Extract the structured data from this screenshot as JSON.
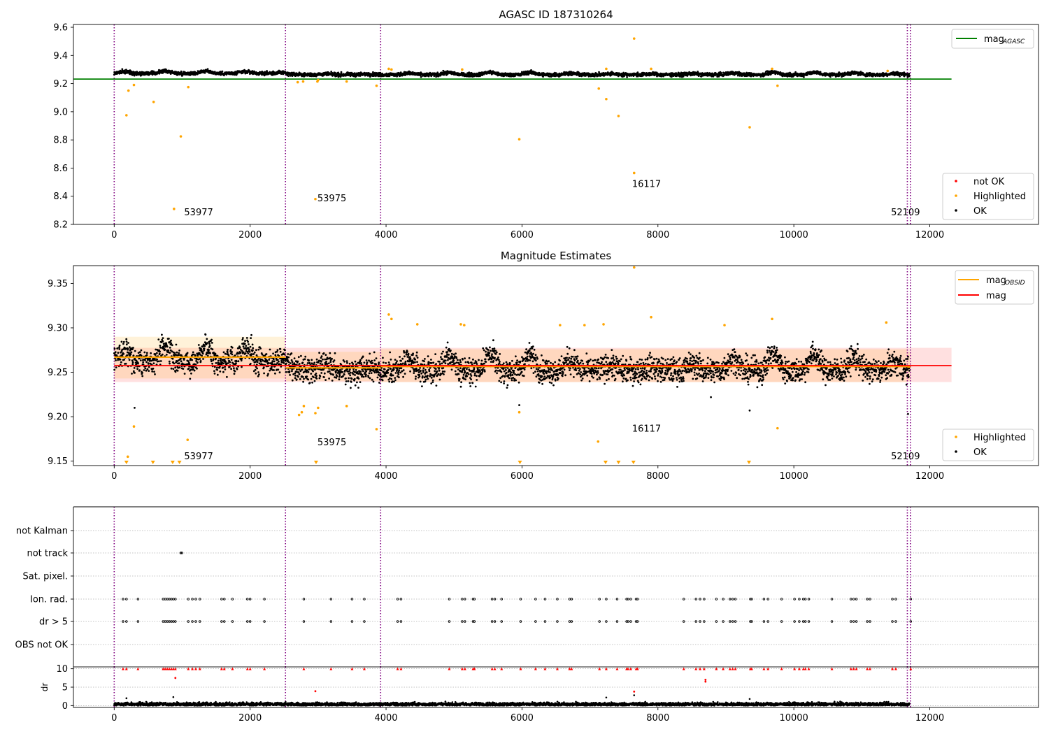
{
  "chart_data": [
    {
      "type": "scatter",
      "title": "AGASC ID 187310264",
      "xlim": [
        -600,
        13600
      ],
      "ylim": [
        8.2,
        9.62
      ],
      "xticks": [
        0,
        2000,
        4000,
        6000,
        8000,
        10000,
        12000
      ],
      "yticks": [
        8.2,
        8.4,
        8.6,
        8.8,
        9.0,
        9.2,
        9.4,
        9.6
      ],
      "ytick_labels": [
        "8.2",
        "8.4",
        "8.6",
        "8.8",
        "9.0",
        "9.2",
        "9.4",
        "9.6"
      ],
      "reference_line": {
        "name": "mag_AGASC",
        "value": 9.232,
        "x_range": [
          -600,
          12320
        ],
        "color": "#008000"
      },
      "obs_boundaries": [
        0,
        2520,
        3920,
        11670,
        11715
      ],
      "obs_labels": [
        {
          "text": "53977",
          "x": 1030,
          "y": 8.265
        },
        {
          "text": "53975",
          "x": 2990,
          "y": 8.365
        },
        {
          "text": "16117",
          "x": 7620,
          "y": 8.465
        },
        {
          "text": "52109",
          "x": 11430,
          "y": 8.265
        }
      ],
      "highlighted_points": [
        [
          180,
          8.975
        ],
        [
          210,
          9.15
        ],
        [
          290,
          9.19
        ],
        [
          580,
          9.07
        ],
        [
          880,
          8.31
        ],
        [
          980,
          8.825
        ],
        [
          1090,
          9.175
        ],
        [
          2700,
          9.21
        ],
        [
          2780,
          9.215
        ],
        [
          2960,
          8.38
        ],
        [
          2990,
          9.215
        ],
        [
          3000,
          9.225
        ],
        [
          3420,
          9.215
        ],
        [
          3860,
          9.185
        ],
        [
          4040,
          9.305
        ],
        [
          4080,
          9.3
        ],
        [
          5120,
          9.3
        ],
        [
          5960,
          8.805
        ],
        [
          7130,
          9.165
        ],
        [
          7240,
          9.09
        ],
        [
          7240,
          9.305
        ],
        [
          7420,
          8.97
        ],
        [
          7650,
          9.52
        ],
        [
          7650,
          8.565
        ],
        [
          7900,
          9.305
        ],
        [
          9350,
          8.89
        ],
        [
          9680,
          9.305
        ],
        [
          9760,
          9.185
        ],
        [
          11380,
          9.29
        ]
      ],
      "not_ok_points": [],
      "legends": [
        {
          "position": "upper-right",
          "entries": [
            {
              "label": "mag",
              "sub": "AGASC",
              "color": "#008000",
              "marker": "line"
            }
          ]
        },
        {
          "position": "lower-right",
          "entries": [
            {
              "label": "not OK",
              "color": "#ff0000",
              "marker": "dot"
            },
            {
              "label": "Highlighted",
              "color": "#ffa500",
              "marker": "dot"
            },
            {
              "label": "OK",
              "color": "#000000",
              "marker": "dot"
            }
          ]
        }
      ]
    },
    {
      "type": "scatter",
      "title": "Magnitude Estimates",
      "xlim": [
        -600,
        13600
      ],
      "ylim": [
        9.145,
        9.37
      ],
      "xticks": [
        0,
        2000,
        4000,
        6000,
        8000,
        10000,
        12000
      ],
      "yticks": [
        9.15,
        9.2,
        9.25,
        9.3,
        9.35
      ],
      "ytick_labels": [
        "9.15",
        "9.20",
        "9.25",
        "9.30",
        "9.35"
      ],
      "obs_boundaries": [
        0,
        2520,
        3920,
        11670,
        11715
      ],
      "obs_labels": [
        {
          "text": "53977",
          "x": 1030,
          "y": 9.152
        },
        {
          "text": "53975",
          "x": 2990,
          "y": 9.168
        },
        {
          "text": "16117",
          "x": 7620,
          "y": 9.183
        },
        {
          "text": "52109",
          "x": 11430,
          "y": 9.152
        }
      ],
      "mag_line": {
        "name": "mag",
        "value": 9.2575,
        "band": [
          9.239,
          9.2775
        ],
        "x_range": [
          0,
          12320
        ],
        "color": "#ff0000"
      },
      "mag_obsid_segments": [
        {
          "x_range": [
            0,
            2520
          ],
          "value": 9.267,
          "band": [
            9.243,
            9.29
          ]
        },
        {
          "x_range": [
            2520,
            3920
          ],
          "value": 9.255,
          "band": [
            9.24,
            9.273
          ]
        },
        {
          "x_range": [
            3920,
            11670
          ],
          "value": 9.2565,
          "band": [
            9.239,
            9.276
          ]
        },
        {
          "x_range": [
            11670,
            11715
          ],
          "value": 9.256,
          "band": [
            9.24,
            9.273
          ]
        }
      ],
      "highlighted_points": [
        [
          200,
          9.155
        ],
        [
          290,
          9.189
        ],
        [
          1080,
          9.174
        ],
        [
          2720,
          9.202
        ],
        [
          2760,
          9.205
        ],
        [
          2790,
          9.212
        ],
        [
          2960,
          9.204
        ],
        [
          3000,
          9.21
        ],
        [
          3420,
          9.212
        ],
        [
          3860,
          9.186
        ],
        [
          4040,
          9.315
        ],
        [
          4080,
          9.31
        ],
        [
          4460,
          9.304
        ],
        [
          5100,
          9.304
        ],
        [
          5150,
          9.303
        ],
        [
          5960,
          9.205
        ],
        [
          6560,
          9.303
        ],
        [
          6920,
          9.303
        ],
        [
          7120,
          9.172
        ],
        [
          7200,
          9.304
        ],
        [
          7650,
          9.368
        ],
        [
          7900,
          9.312
        ],
        [
          8980,
          9.303
        ],
        [
          9680,
          9.31
        ],
        [
          9760,
          9.187
        ],
        [
          11360,
          9.306
        ]
      ],
      "below_range_markers": [
        180,
        570,
        860,
        960,
        2970,
        5970,
        7230,
        7420,
        7640,
        9340
      ],
      "legends": [
        {
          "position": "upper-right",
          "entries": [
            {
              "label": "mag",
              "sub": "OBSID",
              "color": "#ffa500",
              "marker": "line"
            },
            {
              "label": "mag",
              "sub": "",
              "color": "#ff0000",
              "marker": "line"
            }
          ]
        },
        {
          "position": "lower-right",
          "entries": [
            {
              "label": "Highlighted",
              "color": "#ffa500",
              "marker": "dot"
            },
            {
              "label": "OK",
              "color": "#000000",
              "marker": "dot"
            }
          ]
        }
      ]
    },
    {
      "type": "scatter",
      "title": "",
      "xlim": [
        -600,
        13600
      ],
      "categories": [
        "not Kalman",
        "not track",
        "Sat. pixel.",
        "Ion. rad.",
        "dr > 5",
        "OBS not OK"
      ],
      "flag_positions": {
        "not Kalman": [],
        "not track": [
          980,
          995
        ],
        "Sat. pixel.": [],
        "Ion. rad.": [
          130,
          180,
          350,
          720,
          750,
          780,
          810,
          840,
          870,
          900,
          1090,
          1150,
          1200,
          1260,
          1580,
          1620,
          1740,
          1960,
          2000,
          2210,
          2790,
          3190,
          3500,
          3680,
          4170,
          4220,
          4930,
          5120,
          5160,
          5280,
          5300,
          5560,
          5600,
          5700,
          5980,
          6200,
          6340,
          6520,
          6700,
          6730,
          7140,
          7240,
          7400,
          7540,
          7560,
          7600,
          7680,
          7700,
          8380,
          8560,
          8620,
          8680,
          8860,
          8960,
          9060,
          9100,
          9140,
          9360,
          9380,
          9560,
          9620,
          9820,
          10010,
          10080,
          10140,
          10170,
          10220,
          10560,
          10840,
          10880,
          10920,
          11080,
          11120,
          11450,
          11500,
          11720
        ],
        "dr > 5": [
          130,
          180,
          350,
          720,
          750,
          780,
          810,
          840,
          870,
          900,
          1090,
          1150,
          1200,
          1260,
          1580,
          1620,
          1740,
          1960,
          2000,
          2210,
          2790,
          3190,
          3500,
          3680,
          4170,
          4220,
          4930,
          5120,
          5160,
          5280,
          5300,
          5560,
          5600,
          5700,
          5980,
          6200,
          6340,
          6520,
          6700,
          6730,
          7140,
          7240,
          7400,
          7540,
          7560,
          7600,
          7680,
          7700,
          8380,
          8560,
          8620,
          8680,
          8860,
          8960,
          9060,
          9100,
          9140,
          9360,
          9380,
          9560,
          9620,
          9820,
          10010,
          10080,
          10140,
          10170,
          10220,
          10560,
          10840,
          10880,
          10920,
          11080,
          11120,
          11450,
          11500,
          11720
        ],
        "OBS not OK": []
      },
      "obs_boundaries": [
        0,
        2520,
        3920,
        11670,
        11715
      ]
    },
    {
      "type": "scatter",
      "title": "",
      "xlim": [
        -600,
        13600
      ],
      "ylim": [
        -0.5,
        10.5
      ],
      "ylabel": "dr",
      "xticks": [
        0,
        2000,
        4000,
        6000,
        8000,
        10000,
        12000
      ],
      "yticks": [
        0,
        5,
        10
      ],
      "ytick_labels": [
        "0",
        "5",
        "10"
      ],
      "obs_boundaries": [
        0,
        2520,
        3920,
        11670,
        11715
      ],
      "clipped_outliers_x": [
        130,
        180,
        350,
        720,
        750,
        780,
        810,
        840,
        870,
        900,
        1090,
        1150,
        1200,
        1260,
        1580,
        1620,
        1740,
        1960,
        2000,
        2210,
        2790,
        3190,
        3500,
        3680,
        4170,
        4220,
        4930,
        5120,
        5160,
        5280,
        5300,
        5560,
        5600,
        5700,
        5980,
        6200,
        6340,
        6520,
        6700,
        6730,
        7140,
        7240,
        7400,
        7540,
        7560,
        7600,
        7680,
        7700,
        8380,
        8560,
        8620,
        8680,
        8860,
        8960,
        9060,
        9100,
        9140,
        9360,
        9380,
        9560,
        9620,
        9820,
        10010,
        10080,
        10140,
        10170,
        10220,
        10560,
        10840,
        10880,
        10920,
        11080,
        11120,
        11450,
        11500,
        11720
      ],
      "mid_points": [
        [
          900,
          7.5
        ],
        [
          2960,
          3.9
        ],
        [
          7650,
          3.8
        ],
        [
          8700,
          7.0
        ],
        [
          8700,
          6.5
        ]
      ]
    }
  ],
  "colors": {
    "ok": "#000000",
    "highlighted": "#ffa500",
    "not_ok": "#ff0000",
    "agasc": "#008000",
    "obsid": "#ffa500",
    "mag": "#ff0000",
    "boundary": "#800080"
  }
}
